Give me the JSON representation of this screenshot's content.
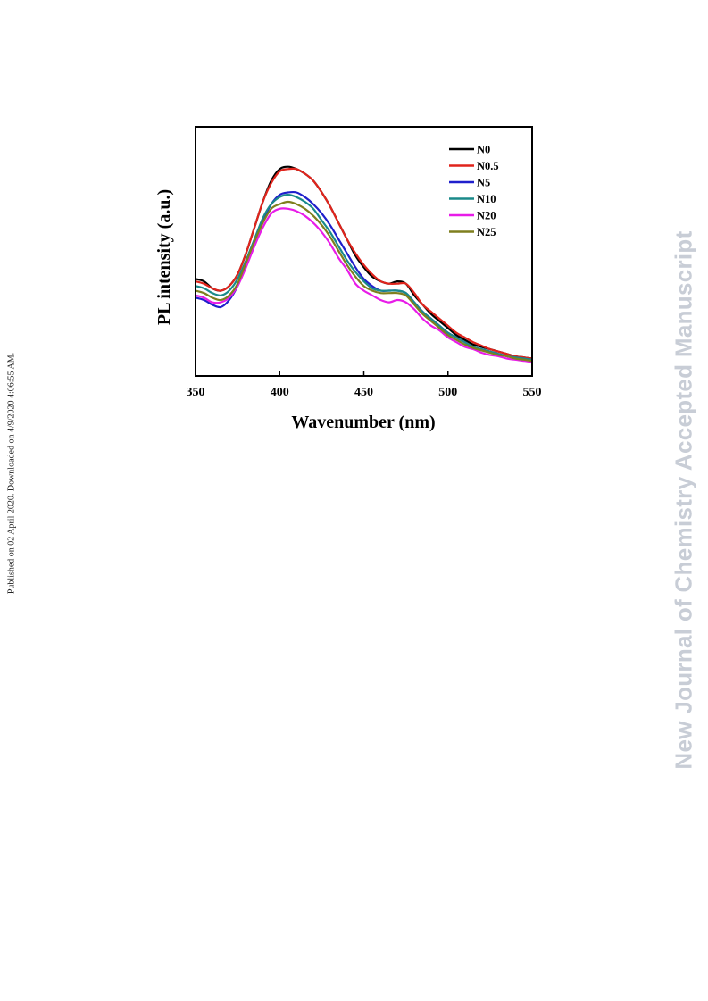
{
  "margin_note": "Published on 02 April 2020. Downloaded on 4/9/2020 4:06:55 AM.",
  "watermark": "New Journal of Chemistry Accepted Manuscript",
  "chart_data": {
    "type": "line",
    "xlabel": "Wavenumber (nm)",
    "ylabel": "PL intensity (a.u.)",
    "xlim": [
      350,
      550
    ],
    "ylim": [
      0,
      1.0
    ],
    "xticks": [
      350,
      400,
      450,
      500,
      550
    ],
    "y_tick_labels_shown": false,
    "legend_position": "top-right",
    "grid": false,
    "x": [
      350,
      355,
      360,
      365,
      370,
      375,
      380,
      385,
      390,
      395,
      400,
      405,
      410,
      415,
      420,
      425,
      430,
      435,
      440,
      445,
      450,
      455,
      460,
      465,
      470,
      475,
      480,
      485,
      490,
      495,
      500,
      505,
      510,
      515,
      520,
      525,
      530,
      535,
      540,
      545,
      550
    ],
    "series": [
      {
        "name": "N0",
        "color": "#000000",
        "values": [
          0.38,
          0.37,
          0.34,
          0.33,
          0.35,
          0.4,
          0.49,
          0.6,
          0.71,
          0.8,
          0.85,
          0.86,
          0.85,
          0.83,
          0.8,
          0.75,
          0.69,
          0.62,
          0.55,
          0.48,
          0.43,
          0.39,
          0.37,
          0.36,
          0.37,
          0.36,
          0.31,
          0.27,
          0.23,
          0.2,
          0.17,
          0.14,
          0.12,
          0.1,
          0.09,
          0.08,
          0.07,
          0.06,
          0.05,
          0.045,
          0.04
        ]
      },
      {
        "name": "N0.5",
        "color": "#e0241c",
        "values": [
          0.37,
          0.36,
          0.34,
          0.33,
          0.35,
          0.4,
          0.49,
          0.6,
          0.71,
          0.79,
          0.84,
          0.85,
          0.85,
          0.83,
          0.8,
          0.75,
          0.69,
          0.62,
          0.55,
          0.49,
          0.44,
          0.4,
          0.37,
          0.36,
          0.36,
          0.36,
          0.32,
          0.27,
          0.24,
          0.21,
          0.18,
          0.15,
          0.13,
          0.11,
          0.095,
          0.08,
          0.07,
          0.06,
          0.05,
          0.045,
          0.04
        ]
      },
      {
        "name": "N5",
        "color": "#1f1fcc",
        "values": [
          0.3,
          0.29,
          0.27,
          0.26,
          0.29,
          0.35,
          0.44,
          0.54,
          0.63,
          0.7,
          0.74,
          0.75,
          0.75,
          0.73,
          0.7,
          0.66,
          0.61,
          0.55,
          0.49,
          0.43,
          0.38,
          0.35,
          0.33,
          0.33,
          0.33,
          0.32,
          0.28,
          0.24,
          0.21,
          0.18,
          0.15,
          0.13,
          0.11,
          0.09,
          0.08,
          0.07,
          0.06,
          0.05,
          0.045,
          0.04,
          0.035
        ]
      },
      {
        "name": "N10",
        "color": "#1a8a8a",
        "values": [
          0.35,
          0.34,
          0.32,
          0.31,
          0.33,
          0.38,
          0.46,
          0.55,
          0.64,
          0.7,
          0.73,
          0.74,
          0.73,
          0.71,
          0.68,
          0.63,
          0.58,
          0.52,
          0.46,
          0.41,
          0.37,
          0.34,
          0.33,
          0.33,
          0.33,
          0.32,
          0.28,
          0.24,
          0.21,
          0.18,
          0.15,
          0.13,
          0.11,
          0.09,
          0.08,
          0.07,
          0.06,
          0.05,
          0.045,
          0.04,
          0.035
        ]
      },
      {
        "name": "N20",
        "color": "#e81ce8",
        "values": [
          0.31,
          0.3,
          0.28,
          0.28,
          0.3,
          0.35,
          0.43,
          0.52,
          0.6,
          0.66,
          0.68,
          0.68,
          0.67,
          0.65,
          0.62,
          0.58,
          0.53,
          0.47,
          0.42,
          0.36,
          0.33,
          0.31,
          0.29,
          0.28,
          0.29,
          0.28,
          0.25,
          0.21,
          0.18,
          0.16,
          0.13,
          0.11,
          0.09,
          0.08,
          0.065,
          0.055,
          0.05,
          0.04,
          0.035,
          0.03,
          0.025
        ]
      },
      {
        "name": "N25",
        "color": "#7f7f1e",
        "values": [
          0.33,
          0.32,
          0.3,
          0.29,
          0.31,
          0.36,
          0.45,
          0.54,
          0.62,
          0.68,
          0.7,
          0.71,
          0.7,
          0.68,
          0.65,
          0.61,
          0.56,
          0.5,
          0.44,
          0.39,
          0.35,
          0.33,
          0.32,
          0.32,
          0.32,
          0.31,
          0.27,
          0.23,
          0.2,
          0.17,
          0.14,
          0.12,
          0.1,
          0.085,
          0.075,
          0.065,
          0.055,
          0.05,
          0.04,
          0.035,
          0.03
        ]
      }
    ]
  }
}
